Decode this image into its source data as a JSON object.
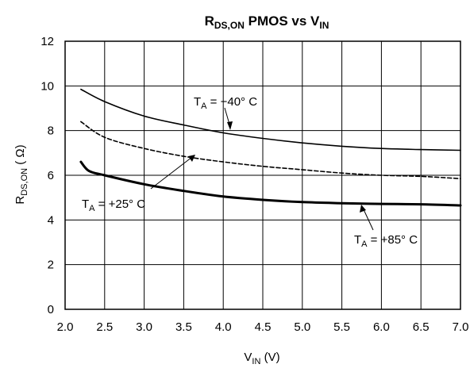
{
  "chart_data": {
    "type": "line",
    "title": {
      "main": "R",
      "sub": "DS,ON",
      "rest": " PMOS vs V",
      "sub2": "IN"
    },
    "xlabel": {
      "main": "V",
      "sub": "IN",
      "rest": " (V)"
    },
    "ylabel": {
      "main": "R",
      "sub": "DS,ON",
      "rest": " ( Ω)"
    },
    "xlim": [
      2.0,
      7.0
    ],
    "ylim": [
      0,
      12
    ],
    "x_ticks": [
      "2.0",
      "2.5",
      "3.0",
      "3.5",
      "4.0",
      "4.5",
      "5.0",
      "5.5",
      "6.0",
      "6.5",
      "7.0"
    ],
    "y_ticks": [
      "0",
      "2",
      "4",
      "6",
      "8",
      "10",
      "12"
    ],
    "grid": true,
    "legend": "none",
    "series": [
      {
        "temperature": "-40°C",
        "style": "solid",
        "x": [
          2.2,
          2.5,
          3.0,
          3.5,
          4.0,
          4.5,
          5.0,
          5.5,
          6.0,
          6.5,
          7.0
        ],
        "y": [
          9.85,
          9.3,
          8.65,
          8.25,
          7.9,
          7.65,
          7.45,
          7.3,
          7.2,
          7.15,
          7.12
        ]
      },
      {
        "temperature": "+25°C",
        "style": "dashed",
        "x": [
          2.2,
          2.5,
          3.0,
          3.5,
          4.0,
          4.5,
          5.0,
          5.5,
          6.0,
          6.5,
          7.0
        ],
        "y": [
          8.4,
          7.7,
          7.2,
          6.85,
          6.6,
          6.4,
          6.25,
          6.1,
          6.0,
          5.95,
          5.85
        ]
      },
      {
        "temperature": "+85°C",
        "style": "bold",
        "x": [
          2.2,
          2.3,
          2.5,
          3.0,
          3.5,
          4.0,
          4.5,
          5.0,
          5.5,
          6.0,
          6.5,
          7.0
        ],
        "y": [
          6.6,
          6.2,
          6.0,
          5.6,
          5.3,
          5.05,
          4.9,
          4.8,
          4.75,
          4.72,
          4.7,
          4.65
        ]
      }
    ],
    "annotations": [
      {
        "sym": "T",
        "sub": "A",
        "rest": " = −40° C"
      },
      {
        "sym": "T",
        "sub": "A",
        "rest": " = +25° C"
      },
      {
        "sym": "T",
        "sub": "A",
        "rest": " = +85° C"
      }
    ]
  }
}
